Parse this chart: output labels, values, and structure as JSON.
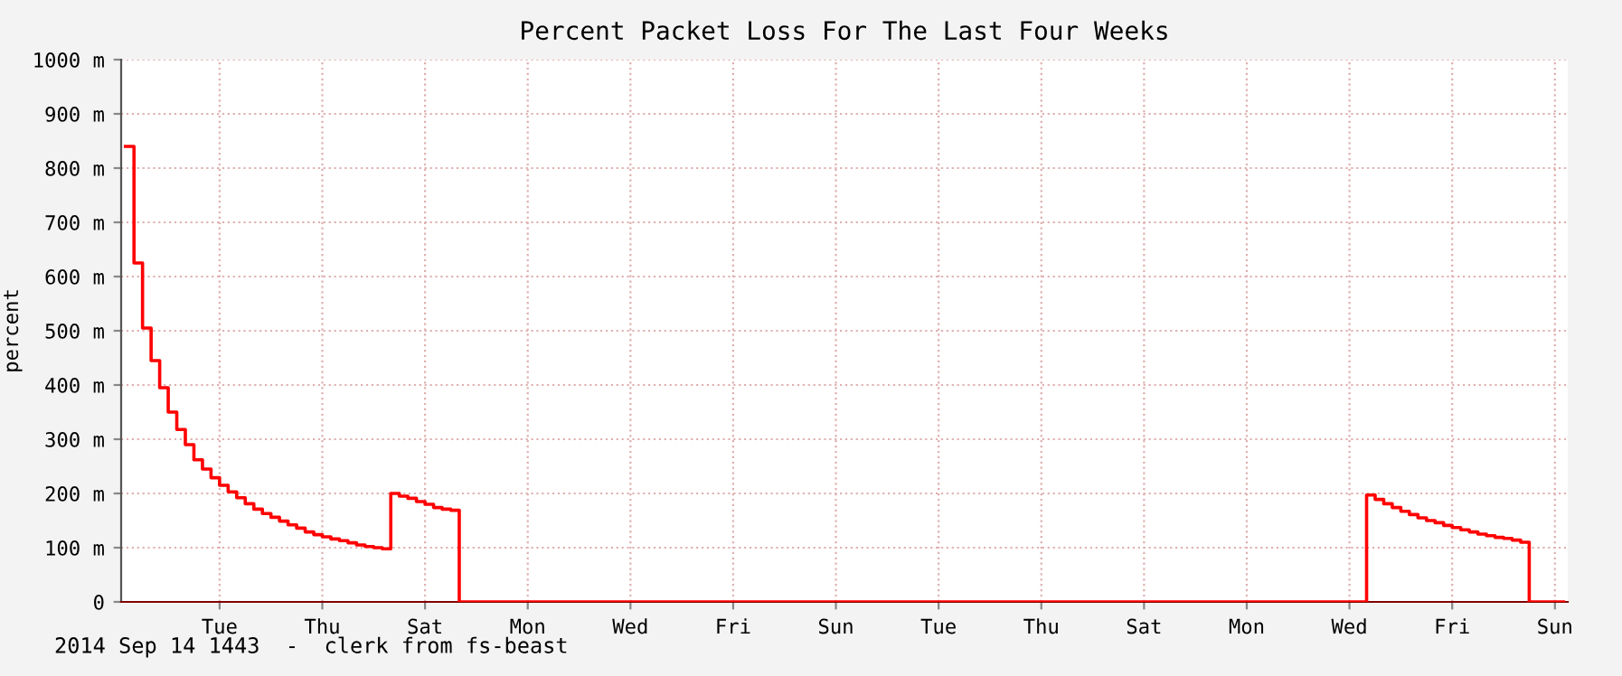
{
  "chart_data": {
    "type": "step",
    "title": "Percent Packet Loss For The Last Four Weeks",
    "ylabel": "percent",
    "annotations": [
      "2014 Sep 14 1443  -  clerk from fs-beast"
    ],
    "categories": [
      null,
      null,
      null,
      null,
      null,
      null,
      null,
      null,
      null,
      null,
      null,
      "Tue",
      null,
      null,
      null,
      null,
      null,
      null,
      null,
      null,
      null,
      null,
      null,
      "Thu",
      null,
      null,
      null,
      null,
      null,
      null,
      null,
      null,
      null,
      null,
      null,
      "Sat",
      null,
      null,
      null,
      null,
      null,
      null,
      null,
      null,
      null,
      null,
      null,
      "Mon",
      null,
      null,
      null,
      null,
      null,
      null,
      null,
      null,
      null,
      null,
      null,
      "Wed",
      null,
      null,
      null,
      null,
      null,
      null,
      null,
      null,
      null,
      null,
      null,
      "Fri",
      null,
      null,
      null,
      null,
      null,
      null,
      null,
      null,
      null,
      null,
      null,
      "Sun",
      null,
      null,
      null,
      null,
      null,
      null,
      null,
      null,
      null,
      null,
      null,
      "Tue",
      null,
      null,
      null,
      null,
      null,
      null,
      null,
      null,
      null,
      null,
      null,
      "Thu",
      null,
      null,
      null,
      null,
      null,
      null,
      null,
      null,
      null,
      null,
      null,
      "Sat",
      null,
      null,
      null,
      null,
      null,
      null,
      null,
      null,
      null,
      null,
      null,
      "Mon",
      null,
      null,
      null,
      null,
      null,
      null,
      null,
      null,
      null,
      null,
      null,
      "Wed",
      null,
      null,
      null,
      null,
      null,
      null,
      null,
      null,
      null,
      null,
      null,
      "Fri",
      null,
      null,
      null,
      null,
      null,
      null,
      null,
      null,
      null,
      null,
      null,
      "Sun",
      null
    ],
    "series": [
      {
        "color": "#ff0000",
        "values": [
          840,
          625,
          505,
          445,
          395,
          350,
          318,
          290,
          262,
          245,
          229,
          215,
          203,
          192,
          181,
          171,
          163,
          156,
          149,
          142,
          136,
          129,
          124,
          120,
          116,
          113,
          109,
          105,
          102,
          100,
          98,
          200,
          195,
          191,
          185,
          180,
          174,
          171,
          169,
          0,
          0,
          0,
          0,
          0,
          0,
          0,
          0,
          0,
          0,
          0,
          0,
          0,
          0,
          0,
          0,
          0,
          0,
          0,
          0,
          0,
          0,
          0,
          0,
          0,
          0,
          0,
          0,
          0,
          0,
          0,
          0,
          0,
          0,
          0,
          0,
          0,
          0,
          0,
          0,
          0,
          0,
          0,
          0,
          0,
          0,
          0,
          0,
          0,
          0,
          0,
          0,
          0,
          0,
          0,
          0,
          0,
          0,
          0,
          0,
          0,
          0,
          0,
          0,
          0,
          0,
          0,
          0,
          0,
          0,
          0,
          0,
          0,
          0,
          0,
          0,
          0,
          0,
          0,
          0,
          0,
          0,
          0,
          0,
          0,
          0,
          0,
          0,
          0,
          0,
          0,
          0,
          0,
          0,
          0,
          0,
          0,
          0,
          0,
          0,
          0,
          0,
          0,
          0,
          0,
          0,
          197,
          189,
          181,
          174,
          167,
          161,
          155,
          150,
          146,
          141,
          137,
          133,
          129,
          125,
          122,
          119,
          117,
          114,
          110,
          0,
          0,
          0,
          0,
          0
        ]
      }
    ],
    "ylim": [
      0,
      1000
    ],
    "yticks": [
      0,
      {
        "value": 100,
        "label": "100 m"
      },
      {
        "value": 200,
        "label": "200 m"
      },
      {
        "value": 300,
        "label": "300 m"
      },
      {
        "value": 400,
        "label": "400 m"
      },
      {
        "value": 500,
        "label": "500 m"
      },
      {
        "value": 600,
        "label": "600 m"
      },
      {
        "value": 700,
        "label": "700 m"
      },
      {
        "value": 800,
        "label": "800 m"
      },
      {
        "value": 900,
        "label": "900 m"
      },
      {
        "value": 1000,
        "label": "1000 m"
      }
    ],
    "grid": true,
    "line_style": "solid",
    "marker": "none"
  }
}
